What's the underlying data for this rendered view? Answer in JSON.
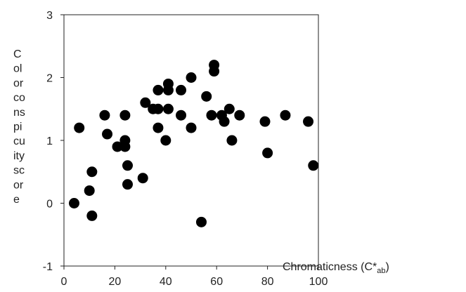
{
  "chart_data": {
    "type": "scatter",
    "title": "",
    "xlabel": {
      "main": "Chromaticness (C*",
      "subscript": "ab",
      "close": ")"
    },
    "ylabel_lines": [
      "C",
      "ol",
      "or",
      "co",
      "ns",
      "pi",
      "cu",
      "ity",
      "sc",
      "or",
      "e"
    ],
    "xlim": [
      0,
      100
    ],
    "ylim": [
      -1,
      3
    ],
    "xticks": [
      0,
      20,
      40,
      60,
      80,
      100
    ],
    "yticks": [
      -1,
      0,
      1,
      2,
      3
    ],
    "ytick_labels": [
      "-1",
      "0",
      "1",
      "2",
      "3"
    ],
    "grid": false,
    "legend": "none",
    "marker_color": "#000000",
    "points": [
      {
        "x": 4,
        "y": 0.0
      },
      {
        "x": 6,
        "y": 1.2
      },
      {
        "x": 10,
        "y": 0.2
      },
      {
        "x": 11,
        "y": 0.5
      },
      {
        "x": 11,
        "y": -0.2
      },
      {
        "x": 16,
        "y": 1.4
      },
      {
        "x": 17,
        "y": 1.1
      },
      {
        "x": 21,
        "y": 0.9
      },
      {
        "x": 24,
        "y": 0.9
      },
      {
        "x": 24,
        "y": 1.0
      },
      {
        "x": 24,
        "y": 1.4
      },
      {
        "x": 25,
        "y": 0.6
      },
      {
        "x": 25,
        "y": 0.3
      },
      {
        "x": 31,
        "y": 0.4
      },
      {
        "x": 32,
        "y": 1.6
      },
      {
        "x": 35,
        "y": 1.5
      },
      {
        "x": 37,
        "y": 1.8
      },
      {
        "x": 37,
        "y": 1.5
      },
      {
        "x": 37,
        "y": 1.2
      },
      {
        "x": 40,
        "y": 1.0
      },
      {
        "x": 41,
        "y": 1.8
      },
      {
        "x": 41,
        "y": 1.9
      },
      {
        "x": 41,
        "y": 1.5
      },
      {
        "x": 46,
        "y": 1.8
      },
      {
        "x": 46,
        "y": 1.4
      },
      {
        "x": 50,
        "y": 2.0
      },
      {
        "x": 50,
        "y": 1.2
      },
      {
        "x": 54,
        "y": -0.3
      },
      {
        "x": 56,
        "y": 1.7
      },
      {
        "x": 58,
        "y": 1.4
      },
      {
        "x": 59,
        "y": 2.2
      },
      {
        "x": 59,
        "y": 2.1
      },
      {
        "x": 62,
        "y": 1.4
      },
      {
        "x": 63,
        "y": 1.3
      },
      {
        "x": 65,
        "y": 1.5
      },
      {
        "x": 66,
        "y": 1.0
      },
      {
        "x": 69,
        "y": 1.4
      },
      {
        "x": 79,
        "y": 1.3
      },
      {
        "x": 80,
        "y": 0.8
      },
      {
        "x": 87,
        "y": 1.4
      },
      {
        "x": 96,
        "y": 1.3
      },
      {
        "x": 98,
        "y": 0.6
      }
    ]
  }
}
